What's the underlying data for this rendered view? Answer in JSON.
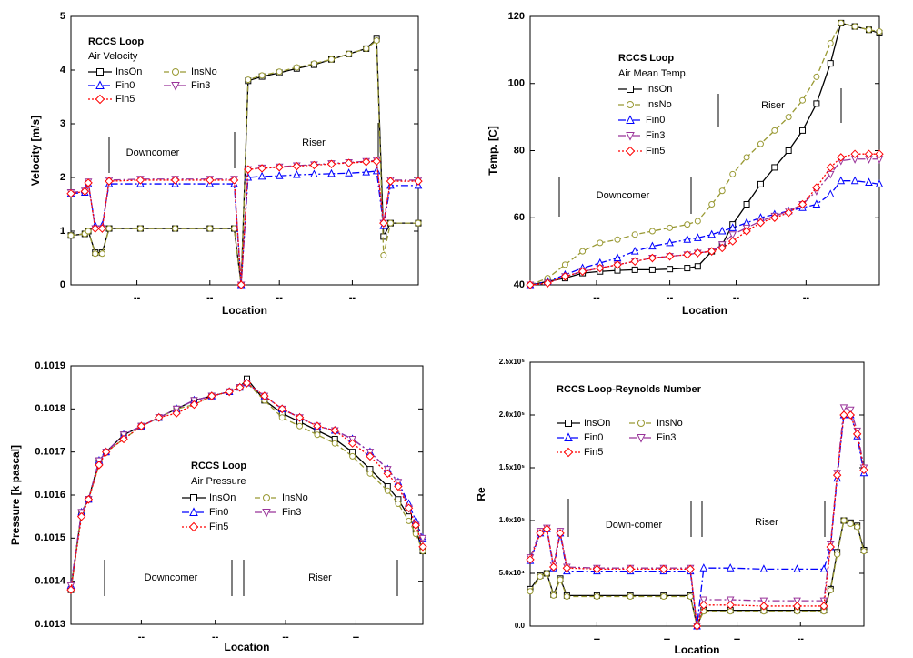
{
  "chart_data": [
    {
      "type": "line",
      "title": "RCCS Loop",
      "subtitle": "Air Velocity",
      "x_label": "Location",
      "y_label": "Velocity [m/s]",
      "annotations": [
        "Downcomer",
        "Riser"
      ],
      "x": [
        0,
        4,
        5,
        7,
        9,
        11,
        20,
        30,
        40,
        47,
        49,
        51,
        55,
        60,
        65,
        70,
        75,
        80,
        85,
        88,
        90,
        92,
        100
      ],
      "xlim": [
        0,
        100
      ],
      "xticks": [
        {
          "value": 19,
          "label": "--"
        },
        {
          "value": 40,
          "label": "--"
        },
        {
          "value": 60,
          "label": "--"
        },
        {
          "value": 81,
          "label": "--"
        }
      ],
      "ylim": [
        0,
        5
      ],
      "yticks": [
        0,
        1,
        2,
        3,
        4,
        5
      ],
      "series": [
        {
          "name": "InsOn",
          "color": "#000000",
          "marker": "square",
          "line_style": "solid",
          "values": [
            0.92,
            0.95,
            1.0,
            0.6,
            0.6,
            1.05,
            1.05,
            1.05,
            1.05,
            1.05,
            0,
            3.8,
            3.88,
            3.95,
            4.03,
            4.1,
            4.2,
            4.3,
            4.4,
            4.58,
            0.9,
            1.15,
            1.15
          ]
        },
        {
          "name": "InsNo",
          "color": "#999933",
          "marker": "circle",
          "line_style": "dashed",
          "values": [
            0.92,
            0.95,
            1.0,
            0.58,
            0.58,
            1.05,
            1.05,
            1.05,
            1.05,
            1.05,
            0,
            3.82,
            3.9,
            3.97,
            4.05,
            4.12,
            4.2,
            4.3,
            4.4,
            4.55,
            0.55,
            1.15,
            1.15
          ]
        },
        {
          "name": "Fin0",
          "color": "#0000ff",
          "marker": "triangle-up",
          "line_style": "dash-dot",
          "values": [
            1.7,
            1.72,
            1.88,
            1.1,
            1.1,
            1.88,
            1.88,
            1.88,
            1.88,
            1.88,
            0,
            2.0,
            2.02,
            2.03,
            2.05,
            2.06,
            2.07,
            2.08,
            2.1,
            2.12,
            1.1,
            1.85,
            1.85
          ]
        },
        {
          "name": "Fin3",
          "color": "#993399",
          "marker": "triangle-down",
          "line_style": "dash-dot",
          "values": [
            1.72,
            1.75,
            1.92,
            1.05,
            1.05,
            1.95,
            1.97,
            1.97,
            1.97,
            1.97,
            0,
            2.15,
            2.18,
            2.2,
            2.22,
            2.24,
            2.26,
            2.28,
            2.3,
            2.32,
            1.15,
            1.95,
            1.95
          ]
        },
        {
          "name": "Fin5",
          "color": "#ff0000",
          "marker": "diamond",
          "line_style": "dotted",
          "values": [
            1.7,
            1.74,
            1.9,
            1.05,
            1.05,
            1.93,
            1.95,
            1.95,
            1.95,
            1.95,
            0,
            2.15,
            2.17,
            2.19,
            2.21,
            2.23,
            2.25,
            2.27,
            2.29,
            2.3,
            1.15,
            1.93,
            1.93
          ]
        }
      ]
    },
    {
      "type": "line",
      "title": "RCCS Loop",
      "subtitle": "Air Mean Temp.",
      "x_label": "Location",
      "y_label": "Temp. [C]",
      "annotations": [
        "Downcomer",
        "Riser"
      ],
      "x": [
        0,
        5,
        10,
        15,
        20,
        25,
        30,
        35,
        40,
        45,
        48,
        52,
        55,
        58,
        62,
        66,
        70,
        74,
        78,
        82,
        86,
        89,
        93,
        97,
        100
      ],
      "xlim": [
        0,
        100
      ],
      "xticks": [
        {
          "value": 19,
          "label": "--"
        },
        {
          "value": 40,
          "label": "--"
        },
        {
          "value": 59,
          "label": "--"
        },
        {
          "value": 79,
          "label": "--"
        }
      ],
      "ylim": [
        40,
        120
      ],
      "yticks": [
        40,
        60,
        80,
        100,
        120
      ],
      "series": [
        {
          "name": "InsOn",
          "color": "#000000",
          "marker": "square",
          "line_style": "solid",
          "values": [
            40,
            41,
            42,
            43.5,
            44,
            44.3,
            44.5,
            44.5,
            44.7,
            45,
            45.5,
            50,
            52,
            58,
            64,
            70,
            75,
            80,
            86,
            94,
            106,
            118,
            117,
            116,
            115
          ]
        },
        {
          "name": "InsNo",
          "color": "#999933",
          "marker": "circle",
          "line_style": "dashed",
          "values": [
            40,
            42,
            46,
            50,
            52.5,
            53.5,
            55,
            56,
            57,
            58,
            59,
            64,
            68,
            73,
            78,
            82,
            86,
            90,
            95,
            102,
            112,
            118,
            117,
            116,
            115.5
          ]
        },
        {
          "name": "Fin0",
          "color": "#0000ff",
          "marker": "triangle-up",
          "line_style": "dash-dot",
          "values": [
            40,
            41,
            43,
            45,
            46.5,
            48,
            50,
            51.5,
            52.5,
            53.5,
            54,
            55,
            56,
            57,
            58.5,
            60,
            61,
            62,
            63,
            64,
            67,
            71,
            71,
            70.5,
            70
          ]
        },
        {
          "name": "Fin3",
          "color": "#993399",
          "marker": "triangle-down",
          "line_style": "dash-dot",
          "values": [
            40,
            40.5,
            42.5,
            44,
            45,
            46,
            47,
            48,
            48.5,
            49,
            49.5,
            50,
            52,
            55,
            57,
            59,
            60.5,
            62,
            64,
            68,
            73,
            77,
            77.5,
            77.5,
            77.5
          ]
        },
        {
          "name": "Fin5",
          "color": "#ff0000",
          "marker": "diamond",
          "line_style": "dotted",
          "values": [
            40,
            40.5,
            42.5,
            44,
            45,
            46,
            47,
            48,
            48.5,
            49,
            49.5,
            50,
            51,
            53,
            56,
            58.5,
            60,
            61.5,
            64,
            69,
            75,
            78,
            79,
            79,
            79
          ]
        }
      ]
    },
    {
      "type": "line",
      "title": "RCCS Loop",
      "subtitle": "Air Pressure",
      "x_label": "Location",
      "y_label": "Pressure [k pascal]",
      "annotations": [
        "Downcomer",
        "Riser"
      ],
      "x": [
        0,
        3,
        5,
        8,
        10,
        15,
        20,
        25,
        30,
        35,
        40,
        45,
        48,
        50,
        55,
        60,
        65,
        70,
        75,
        80,
        85,
        90,
        93,
        96,
        98,
        100
      ],
      "xlim": [
        0,
        100
      ],
      "xticks": [
        {
          "value": 20,
          "label": "--"
        },
        {
          "value": 41,
          "label": "--"
        },
        {
          "value": 61,
          "label": "--"
        },
        {
          "value": 81,
          "label": "--"
        }
      ],
      "ylim": [
        0.1013,
        0.1019
      ],
      "yticks": [
        0.1013,
        0.1014,
        0.1015,
        0.1016,
        0.1017,
        0.1018,
        0.1019
      ],
      "series": [
        {
          "name": "InsOn",
          "color": "#000000",
          "marker": "square",
          "line_style": "solid",
          "values": [
            0.10138,
            0.10156,
            0.10159,
            0.10168,
            0.1017,
            0.10174,
            0.10176,
            0.10178,
            0.1018,
            0.10182,
            0.10183,
            0.10184,
            0.10185,
            0.10187,
            0.10182,
            0.10179,
            0.10177,
            0.10175,
            0.10173,
            0.1017,
            0.10166,
            0.10162,
            0.10159,
            0.10155,
            0.10152,
            0.10147
          ]
        },
        {
          "name": "InsNo",
          "color": "#999933",
          "marker": "circle",
          "line_style": "dashed",
          "values": [
            0.10138,
            0.10156,
            0.10159,
            0.10167,
            0.1017,
            0.10173,
            0.10176,
            0.10178,
            0.1018,
            0.10181,
            0.10183,
            0.10184,
            0.10185,
            0.10186,
            0.10182,
            0.10178,
            0.10176,
            0.10174,
            0.10172,
            0.10169,
            0.10165,
            0.10161,
            0.10158,
            0.10154,
            0.10151,
            0.10147
          ]
        },
        {
          "name": "Fin0",
          "color": "#0000ff",
          "marker": "triangle-up",
          "line_style": "dash-dot",
          "values": [
            0.10139,
            0.10156,
            0.10159,
            0.10168,
            0.1017,
            0.10174,
            0.10176,
            0.10178,
            0.1018,
            0.10182,
            0.10183,
            0.10184,
            0.10185,
            0.10186,
            0.10183,
            0.1018,
            0.10178,
            0.10176,
            0.10175,
            0.10173,
            0.1017,
            0.10166,
            0.10163,
            0.10158,
            0.10154,
            0.1015
          ]
        },
        {
          "name": "Fin3",
          "color": "#993399",
          "marker": "triangle-down",
          "line_style": "dash-dot",
          "values": [
            0.10139,
            0.10156,
            0.10159,
            0.10168,
            0.1017,
            0.10174,
            0.10176,
            0.10178,
            0.1018,
            0.10182,
            0.10183,
            0.10184,
            0.10185,
            0.10186,
            0.10183,
            0.1018,
            0.10178,
            0.10176,
            0.10175,
            0.10173,
            0.1017,
            0.10166,
            0.10163,
            0.10157,
            0.10153,
            0.1015
          ]
        },
        {
          "name": "Fin5",
          "color": "#ff0000",
          "marker": "diamond",
          "line_style": "dotted",
          "values": [
            0.10138,
            0.10155,
            0.10159,
            0.10167,
            0.1017,
            0.10173,
            0.10176,
            0.10178,
            0.10179,
            0.10181,
            0.10183,
            0.10184,
            0.10185,
            0.10186,
            0.10183,
            0.1018,
            0.10178,
            0.10176,
            0.10175,
            0.10172,
            0.10169,
            0.10165,
            0.10162,
            0.10157,
            0.10153,
            0.10148
          ]
        }
      ]
    },
    {
      "type": "line",
      "title": "RCCS Loop-Reynolds Number",
      "x_label": "Location",
      "y_label": "Re",
      "annotations": [
        "Down-comer",
        "Riser"
      ],
      "x": [
        0,
        3,
        5,
        7,
        9,
        11,
        20,
        30,
        40,
        48,
        50,
        52,
        60,
        70,
        80,
        88,
        90,
        92,
        94,
        96,
        98,
        100
      ],
      "xlim": [
        0,
        100
      ],
      "xticks": [
        {
          "value": 20,
          "label": "--"
        },
        {
          "value": 41,
          "label": "--"
        },
        {
          "value": 62,
          "label": "--"
        },
        {
          "value": 81,
          "label": "--"
        }
      ],
      "ylim": [
        0,
        250000
      ],
      "yticks": [
        {
          "value": 0,
          "label": "0.0"
        },
        {
          "value": 50000,
          "label": "5.0x10⁴"
        },
        {
          "value": 100000,
          "label": "1.0x10⁵"
        },
        {
          "value": 150000,
          "label": "1.5x10⁵"
        },
        {
          "value": 200000,
          "label": "2.0x10⁵"
        },
        {
          "value": 250000,
          "label": "2.5x10⁵"
        }
      ],
      "series": [
        {
          "name": "InsOn",
          "color": "#000000",
          "marker": "square",
          "line_style": "solid",
          "values": [
            35000,
            48000,
            50000,
            30000,
            45000,
            29000,
            29000,
            29000,
            29000,
            29000,
            0,
            15000,
            15000,
            15000,
            15000,
            15000,
            35000,
            70000,
            100000,
            98000,
            95000,
            72000
          ]
        },
        {
          "name": "InsNo",
          "color": "#999933",
          "marker": "circle",
          "line_style": "dashed",
          "values": [
            33000,
            47000,
            50000,
            29000,
            44000,
            28000,
            28000,
            28000,
            28000,
            28000,
            0,
            14000,
            14000,
            14000,
            14000,
            14000,
            34000,
            68000,
            100000,
            97000,
            94000,
            71000
          ]
        },
        {
          "name": "Fin0",
          "color": "#0000ff",
          "marker": "triangle-up",
          "line_style": "dash-dot",
          "values": [
            62000,
            88000,
            92000,
            55000,
            88000,
            52000,
            52000,
            52000,
            52000,
            52000,
            0,
            55000,
            55000,
            54000,
            54000,
            54000,
            75000,
            140000,
            200000,
            200000,
            180000,
            145000
          ]
        },
        {
          "name": "Fin3",
          "color": "#993399",
          "marker": "triangle-down",
          "line_style": "dash-dot",
          "values": [
            65000,
            90000,
            93000,
            58000,
            90000,
            56000,
            55000,
            55000,
            55000,
            55000,
            0,
            25000,
            25000,
            24000,
            24000,
            24000,
            78000,
            145000,
            207000,
            205000,
            185000,
            150000
          ]
        },
        {
          "name": "Fin5",
          "color": "#ff0000",
          "marker": "diamond",
          "line_style": "dotted",
          "values": [
            63000,
            88000,
            92000,
            56000,
            88000,
            55000,
            54000,
            54000,
            54000,
            54000,
            0,
            20000,
            20000,
            19000,
            19000,
            19000,
            75000,
            143000,
            200000,
            200000,
            182000,
            148000
          ]
        }
      ]
    }
  ]
}
